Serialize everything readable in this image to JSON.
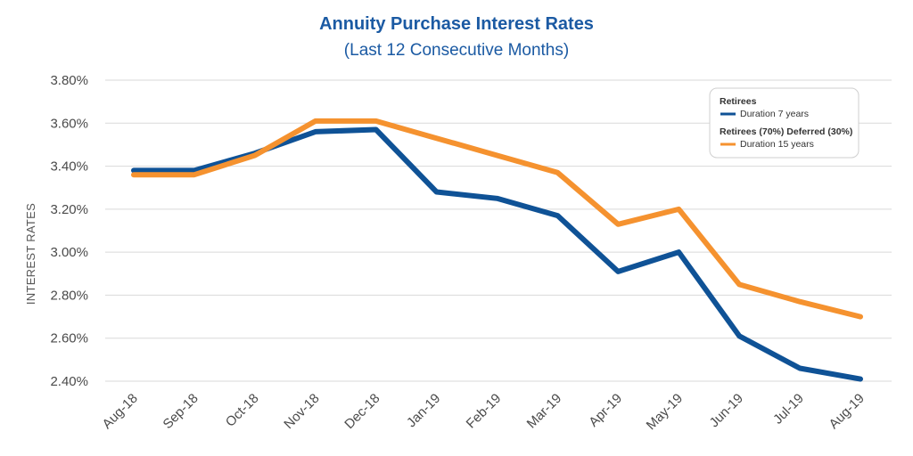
{
  "chart_data": {
    "type": "line",
    "title": "Annuity Purchase Interest Rates",
    "subtitle": "(Last 12 Consecutive Months)",
    "ylabel": "INTEREST RATES",
    "xlabel": "",
    "categories": [
      "Aug-18",
      "Sep-18",
      "Oct-18",
      "Nov-18",
      "Dec-18",
      "Jan-19",
      "Feb-19",
      "Mar-19",
      "Apr-19",
      "May-19",
      "Jun-19",
      "Jul-19",
      "Aug-19"
    ],
    "yticks": [
      "2.40%",
      "2.60%",
      "2.80%",
      "3.00%",
      "3.20%",
      "3.40%",
      "3.60%",
      "3.80%"
    ],
    "ylim": [
      2.4,
      3.8
    ],
    "grid": true,
    "legend_position": "top-right",
    "series": [
      {
        "name": "Duration 7 years",
        "group": "Retirees",
        "color": "#0f5296",
        "values": [
          3.38,
          3.38,
          3.46,
          3.56,
          3.57,
          3.28,
          3.25,
          3.17,
          2.91,
          3.0,
          2.61,
          2.46,
          2.41
        ]
      },
      {
        "name": "Duration 15 years",
        "group": "Retirees (70%) Deferred (30%)",
        "color": "#f5922f",
        "values": [
          3.36,
          3.36,
          3.45,
          3.61,
          3.61,
          3.53,
          3.45,
          3.37,
          3.13,
          3.2,
          2.85,
          2.77,
          2.7
        ]
      }
    ]
  }
}
